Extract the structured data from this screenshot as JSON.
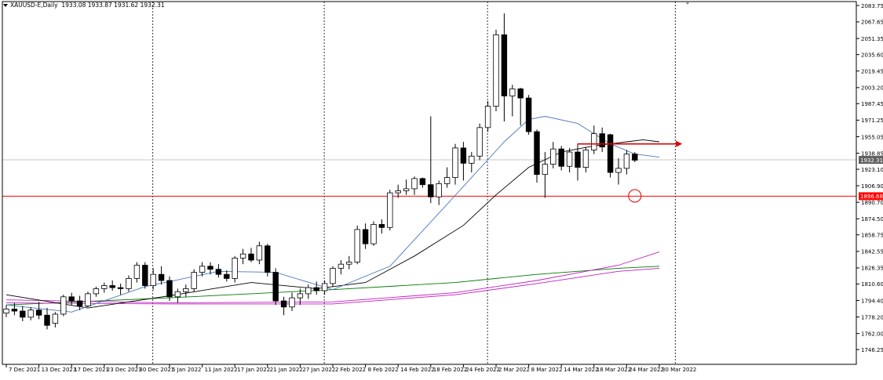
{
  "header": {
    "symbol": "XAUUSD-E,Daily",
    "ohlc": "1933.08 1933.87 1931.62 1932.31"
  },
  "colors": {
    "bull": "#ffffff",
    "bear": "#000000",
    "wick": "#000000",
    "ma_fast": "#4a78c2",
    "ma_mid": "#000000",
    "ma_slow1": "#007a00",
    "ma_slow2": "#c020c0",
    "hline": "#ff0000",
    "arrow": "#e00000",
    "price_tag_bg": "#606060",
    "red_tag_bg": "#ff0000"
  },
  "chart_data": {
    "type": "candlestick",
    "y_ticks": [
      "2083.75",
      "2067.65",
      "2051.35",
      "2035.60",
      "2019.45",
      "2003.20",
      "1987.45",
      "1971.25",
      "1955.05",
      "1938.85",
      "1923.10",
      "1906.90",
      "1890.70",
      "1874.50",
      "1858.75",
      "1842.55",
      "1826.35",
      "1810.60",
      "1794.40",
      "1778.20",
      "1762.00",
      "1746.25"
    ],
    "ylim": [
      1746.25,
      2083.75
    ],
    "x_ticks": [
      {
        "label": "7 Dec 2021",
        "i": 0
      },
      {
        "label": "13 Dec 2021",
        "i": 4
      },
      {
        "label": "17 Dec 2021",
        "i": 8
      },
      {
        "label": "23 Dec 2021",
        "i": 12
      },
      {
        "label": "30 Dec 2021",
        "i": 16
      },
      {
        "label": "5 Jan 2022",
        "i": 20
      },
      {
        "label": "11 Jan 2022",
        "i": 24
      },
      {
        "label": "17 Jan 2022",
        "i": 28
      },
      {
        "label": "21 Jan 2022",
        "i": 32
      },
      {
        "label": "27 Jan 2022",
        "i": 36
      },
      {
        "label": "2 Feb 2022",
        "i": 40
      },
      {
        "label": "8 Feb 2022",
        "i": 44
      },
      {
        "label": "14 Feb 2022",
        "i": 48
      },
      {
        "label": "18 Feb 2022",
        "i": 52
      },
      {
        "label": "24 Feb 2022",
        "i": 56
      },
      {
        "label": "2 Mar 2022",
        "i": 60
      },
      {
        "label": "8 Mar 2022",
        "i": 64
      },
      {
        "label": "14 Mar 2022",
        "i": 68
      },
      {
        "label": "18 Mar 2022",
        "i": 72
      },
      {
        "label": "24 Mar 2022",
        "i": 76
      },
      {
        "label": "30 Mar 2022",
        "i": 80
      }
    ],
    "period_separators": [
      18,
      39,
      59,
      82
    ],
    "candles": [
      [
        1782,
        1790,
        1778,
        1786
      ],
      [
        1786,
        1792,
        1780,
        1784
      ],
      [
        1784,
        1789,
        1774,
        1778
      ],
      [
        1778,
        1788,
        1775,
        1785
      ],
      [
        1785,
        1793,
        1776,
        1780
      ],
      [
        1780,
        1787,
        1766,
        1770
      ],
      [
        1772,
        1783,
        1768,
        1781
      ],
      [
        1781,
        1800,
        1779,
        1798
      ],
      [
        1798,
        1802,
        1790,
        1794
      ],
      [
        1794,
        1799,
        1785,
        1789
      ],
      [
        1789,
        1803,
        1788,
        1801
      ],
      [
        1801,
        1808,
        1798,
        1806
      ],
      [
        1806,
        1812,
        1802,
        1809
      ],
      [
        1809,
        1814,
        1804,
        1807
      ],
      [
        1807,
        1811,
        1800,
        1806
      ],
      [
        1806,
        1819,
        1803,
        1816
      ],
      [
        1816,
        1832,
        1812,
        1829
      ],
      [
        1829,
        1832,
        1806,
        1809
      ],
      [
        1809,
        1826,
        1805,
        1820
      ],
      [
        1820,
        1828,
        1810,
        1814
      ],
      [
        1814,
        1818,
        1794,
        1798
      ],
      [
        1798,
        1806,
        1792,
        1803
      ],
      [
        1803,
        1810,
        1798,
        1806
      ],
      [
        1806,
        1825,
        1803,
        1822
      ],
      [
        1822,
        1832,
        1818,
        1828
      ],
      [
        1828,
        1832,
        1820,
        1825
      ],
      [
        1825,
        1830,
        1817,
        1820
      ],
      [
        1820,
        1824,
        1813,
        1816
      ],
      [
        1816,
        1838,
        1812,
        1836
      ],
      [
        1836,
        1845,
        1830,
        1840
      ],
      [
        1840,
        1846,
        1832,
        1834
      ],
      [
        1834,
        1852,
        1830,
        1848
      ],
      [
        1848,
        1850,
        1818,
        1822
      ],
      [
        1822,
        1826,
        1790,
        1794
      ],
      [
        1794,
        1798,
        1780,
        1788
      ],
      [
        1788,
        1802,
        1784,
        1797
      ],
      [
        1797,
        1806,
        1790,
        1801
      ],
      [
        1801,
        1810,
        1796,
        1807
      ],
      [
        1807,
        1813,
        1800,
        1804
      ],
      [
        1804,
        1814,
        1800,
        1811
      ],
      [
        1811,
        1828,
        1808,
        1826
      ],
      [
        1826,
        1834,
        1820,
        1830
      ],
      [
        1830,
        1838,
        1825,
        1832
      ],
      [
        1832,
        1868,
        1830,
        1864
      ],
      [
        1864,
        1870,
        1845,
        1850
      ],
      [
        1850,
        1872,
        1848,
        1869
      ],
      [
        1869,
        1874,
        1860,
        1866
      ],
      [
        1866,
        1903,
        1863,
        1900
      ],
      [
        1900,
        1908,
        1895,
        1902
      ],
      [
        1902,
        1913,
        1898,
        1904
      ],
      [
        1904,
        1916,
        1898,
        1914
      ],
      [
        1914,
        1915,
        1905,
        1908
      ],
      [
        1908,
        1975,
        1890,
        1896
      ],
      [
        1896,
        1912,
        1888,
        1909
      ],
      [
        1909,
        1925,
        1905,
        1915
      ],
      [
        1915,
        1948,
        1908,
        1944
      ],
      [
        1944,
        1950,
        1912,
        1929
      ],
      [
        1929,
        1940,
        1920,
        1936
      ],
      [
        1936,
        1968,
        1932,
        1964
      ],
      [
        1964,
        1990,
        1960,
        1985
      ],
      [
        1985,
        2060,
        1980,
        2055
      ],
      [
        2055,
        2076,
        1970,
        1995
      ],
      [
        1995,
        2006,
        1975,
        2002
      ],
      [
        2002,
        2003,
        1966,
        1993
      ],
      [
        1993,
        1996,
        1957,
        1960
      ],
      [
        1960,
        1962,
        1910,
        1918
      ],
      [
        1918,
        1940,
        1895,
        1928
      ],
      [
        1928,
        1950,
        1924,
        1943
      ],
      [
        1943,
        1946,
        1922,
        1926
      ],
      [
        1926,
        1944,
        1920,
        1940
      ],
      [
        1940,
        1948,
        1912,
        1925
      ],
      [
        1925,
        1945,
        1920,
        1942
      ],
      [
        1942,
        1966,
        1938,
        1958
      ],
      [
        1958,
        1964,
        1940,
        1945
      ],
      [
        1957,
        1958,
        1915,
        1920
      ],
      [
        1920,
        1934,
        1908,
        1924
      ],
      [
        1924,
        1942,
        1918,
        1938
      ],
      [
        1938,
        1940,
        1930,
        1932
      ]
    ],
    "ma_fast": [
      [
        0,
        1790
      ],
      [
        8,
        1783
      ],
      [
        17,
        1808
      ],
      [
        26,
        1823
      ],
      [
        33,
        1822
      ],
      [
        40,
        1805
      ],
      [
        47,
        1828
      ],
      [
        53,
        1880
      ],
      [
        57,
        1915
      ],
      [
        61,
        1950
      ],
      [
        64,
        1972
      ],
      [
        66,
        1975
      ],
      [
        70,
        1968
      ],
      [
        74,
        1948
      ],
      [
        77,
        1938
      ],
      [
        80,
        1935
      ]
    ],
    "ma_mid": [
      [
        0,
        1800
      ],
      [
        10,
        1787
      ],
      [
        20,
        1799
      ],
      [
        30,
        1812
      ],
      [
        38,
        1806
      ],
      [
        44,
        1812
      ],
      [
        50,
        1838
      ],
      [
        56,
        1868
      ],
      [
        60,
        1898
      ],
      [
        64,
        1925
      ],
      [
        68,
        1940
      ],
      [
        72,
        1946
      ],
      [
        76,
        1950
      ],
      [
        78,
        1952
      ],
      [
        80,
        1950
      ]
    ],
    "ma_slow1": [
      [
        0,
        1790
      ],
      [
        20,
        1797
      ],
      [
        40,
        1805
      ],
      [
        55,
        1812
      ],
      [
        65,
        1820
      ],
      [
        75,
        1826
      ],
      [
        80,
        1828
      ]
    ],
    "ma_slow2": [
      [
        0,
        1792
      ],
      [
        20,
        1791
      ],
      [
        40,
        1791
      ],
      [
        55,
        1800
      ],
      [
        65,
        1811
      ],
      [
        75,
        1823
      ],
      [
        80,
        1826
      ]
    ],
    "ma_slow3": [
      [
        0,
        1795
      ],
      [
        20,
        1792
      ],
      [
        40,
        1793
      ],
      [
        55,
        1802
      ],
      [
        65,
        1814
      ],
      [
        75,
        1829
      ],
      [
        80,
        1842
      ]
    ],
    "resistance_arrow": {
      "price": 1948,
      "from_i": 70,
      "to_i": 83
    },
    "support_line": {
      "price": 1896.68
    },
    "circle_marker": {
      "i": 77,
      "price": 1897
    },
    "current_price": "1932.31",
    "support_label": "1896.68"
  }
}
